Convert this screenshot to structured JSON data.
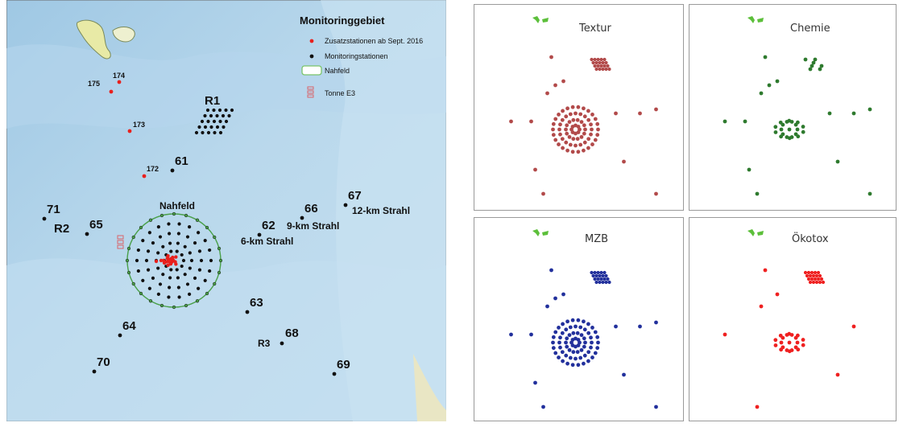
{
  "map": {
    "legend": {
      "title": "Monitoringgebiet",
      "items": [
        {
          "label": "Zusatzstationen ab Sept. 2016",
          "color": "#e8201d",
          "symbol": "dot"
        },
        {
          "label": "Monitoringstationen",
          "color": "#111111",
          "symbol": "dot"
        },
        {
          "label": "Nahfeld",
          "color": "#7ac46a",
          "symbol": "ring"
        },
        {
          "label": "Tonne E3",
          "color": "#d9646a",
          "symbol": "buoy"
        }
      ]
    },
    "area_labels": {
      "nahfeld": "Nahfeld",
      "r1": "R1",
      "r2": "R2",
      "r3": "R3",
      "strahl6": "6-km Strahl",
      "strahl9": "9-km Strahl",
      "strahl12": "12-km Strahl"
    },
    "stations": [
      {
        "id": "175",
        "type": "additional"
      },
      {
        "id": "174",
        "type": "additional"
      },
      {
        "id": "173",
        "type": "additional"
      },
      {
        "id": "172",
        "type": "additional"
      },
      {
        "id": "61",
        "type": "monitoring"
      },
      {
        "id": "71",
        "type": "monitoring"
      },
      {
        "id": "65",
        "type": "monitoring"
      },
      {
        "id": "62",
        "type": "monitoring"
      },
      {
        "id": "66",
        "type": "monitoring"
      },
      {
        "id": "67",
        "type": "monitoring"
      },
      {
        "id": "63",
        "type": "monitoring"
      },
      {
        "id": "64",
        "type": "monitoring"
      },
      {
        "id": "68",
        "type": "monitoring"
      },
      {
        "id": "70",
        "type": "monitoring"
      },
      {
        "id": "69",
        "type": "monitoring"
      }
    ]
  },
  "panels": [
    {
      "title": "Textur",
      "color": "#b24a4a"
    },
    {
      "title": "Chemie",
      "color": "#2e7a2e"
    },
    {
      "title": "MZB",
      "color": "#22309c"
    },
    {
      "title": "Ökotox",
      "color": "#ef2020"
    }
  ]
}
